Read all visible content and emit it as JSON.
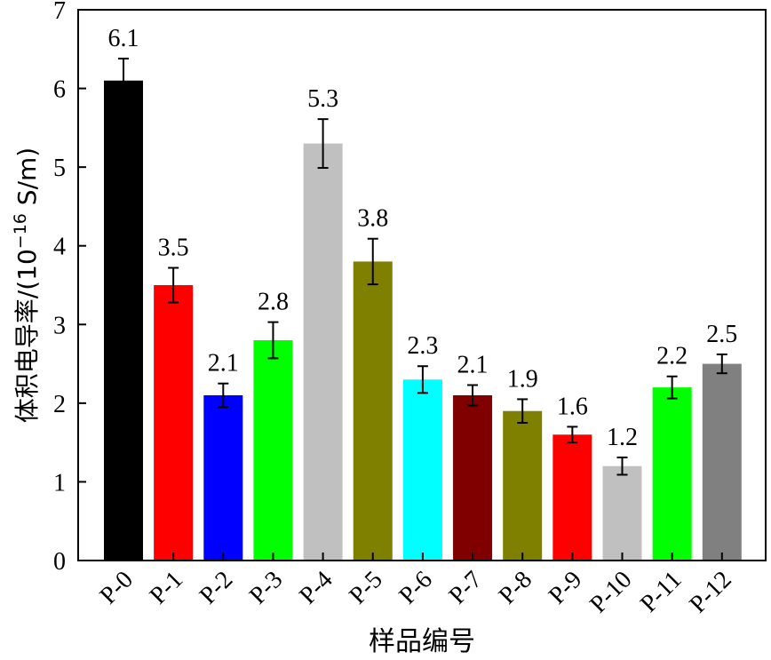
{
  "chart_data": {
    "type": "bar",
    "xlabel": "样品编号",
    "ylabel": {
      "text": "体积电导率/(10",
      "superscript": "−16",
      "unit": " S/m)"
    },
    "ylim": [
      0,
      7
    ],
    "yticks": [
      "0",
      "1",
      "2",
      "3",
      "4",
      "5",
      "6",
      "7"
    ],
    "categories": [
      "P-0",
      "P-1",
      "P-2",
      "P-3",
      "P-4",
      "P-5",
      "P-6",
      "P-7",
      "P-8",
      "P-9",
      "P-10",
      "P-11",
      "P-12"
    ],
    "values": [
      6.1,
      3.5,
      2.1,
      2.8,
      5.3,
      3.8,
      2.3,
      2.1,
      1.9,
      1.6,
      1.2,
      2.2,
      2.5
    ],
    "value_labels": [
      "6.1",
      "3.5",
      "2.1",
      "2.8",
      "5.3",
      "3.8",
      "2.3",
      "2.1",
      "1.9",
      "1.6",
      "1.2",
      "2.2",
      "2.5"
    ],
    "errors": [
      0.28,
      0.22,
      0.15,
      0.23,
      0.31,
      0.29,
      0.17,
      0.13,
      0.15,
      0.1,
      0.11,
      0.14,
      0.12
    ],
    "colors": [
      "#000000",
      "#ff0000",
      "#0000ff",
      "#00ff00",
      "#c0c0c0",
      "#808000",
      "#00ffff",
      "#800000",
      "#808000",
      "#ff0000",
      "#c0c0c0",
      "#00ff00",
      "#808080"
    ],
    "grid": false,
    "legend": "none"
  }
}
